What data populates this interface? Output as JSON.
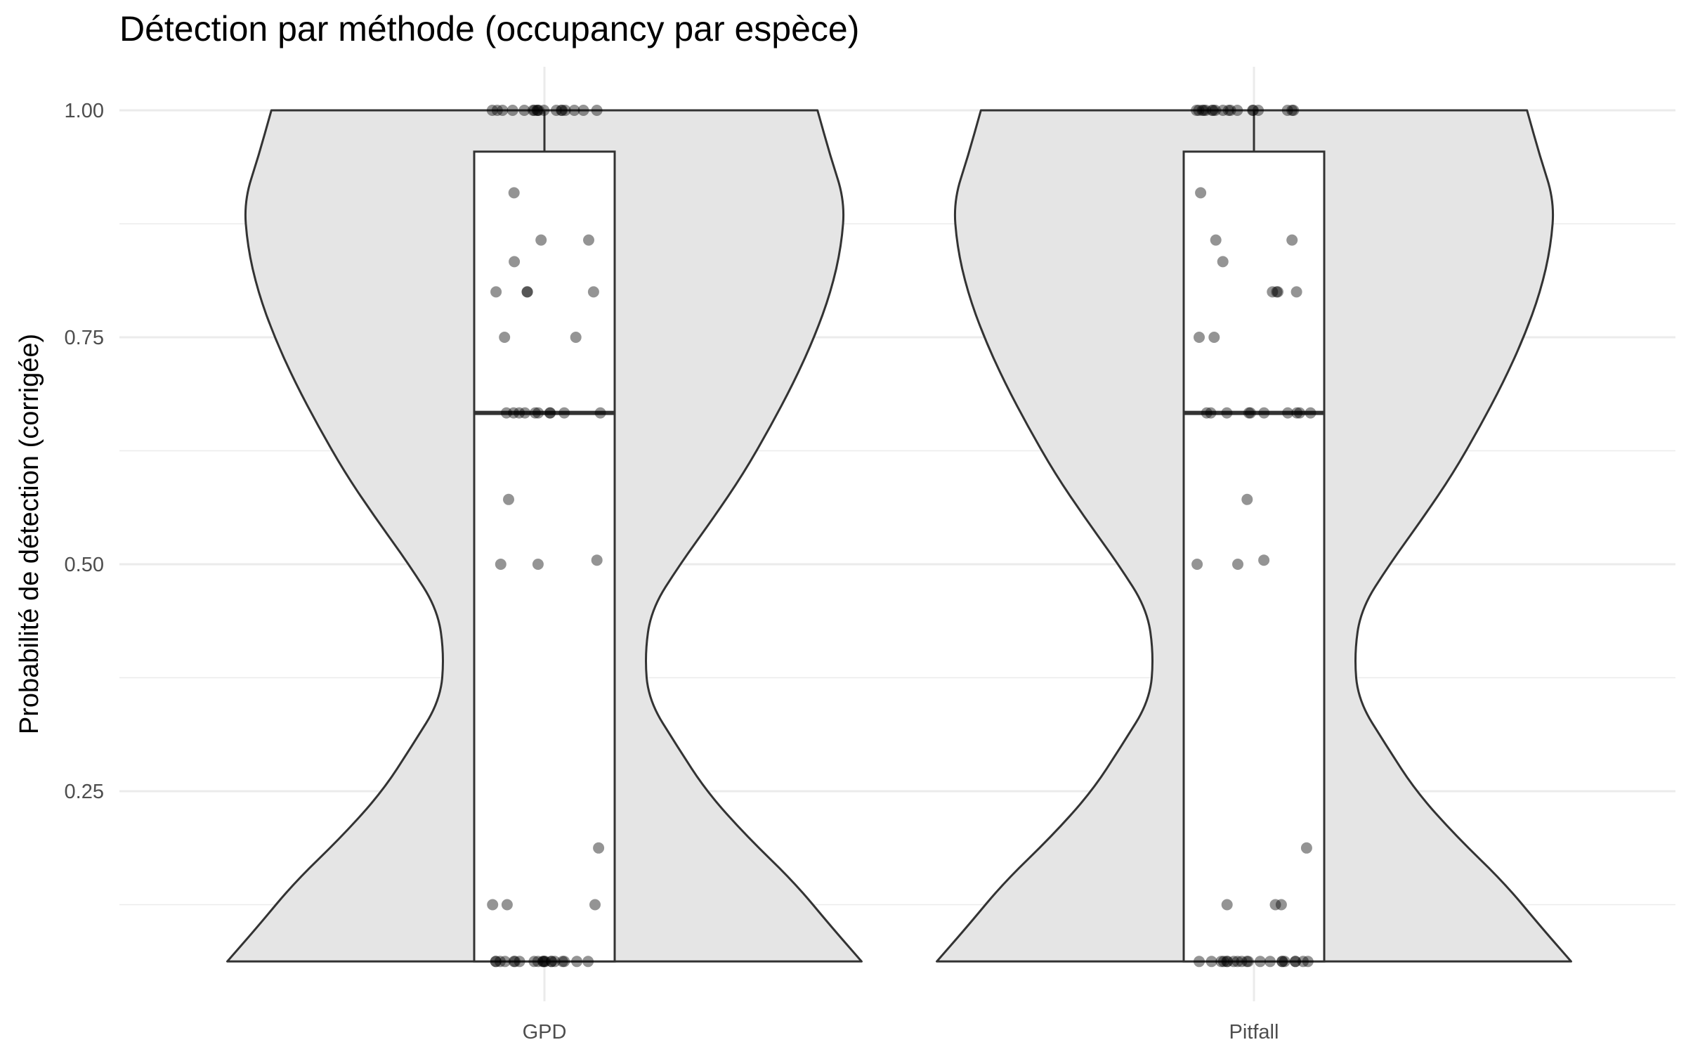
{
  "chart_data": {
    "type": "violin",
    "title": "Détection par méthode (occupancy par espèce)",
    "xlabel": "",
    "ylabel": "Probabilité de détection (corrigée)",
    "ylim": [
      0.043,
      1.0
    ],
    "yticks": [
      0.25,
      0.5,
      0.75,
      1.0
    ],
    "ytick_labels": [
      "0.25",
      "0.50",
      "0.75",
      "1.00"
    ],
    "categories": [
      "GPD",
      "Pitfall"
    ],
    "grid": true,
    "colors": {
      "violin_fill": "#e5e5e5",
      "outline": "#333333",
      "point": "#000000",
      "grid": "#ebebeb"
    },
    "groups": [
      {
        "name": "GPD",
        "box": {
          "min": 0.0625,
          "q1": 0.0625,
          "median": 0.6667,
          "q3": 0.9545,
          "max": 1.0
        },
        "violin_density": [
          [
            0.0625,
            0.999
          ],
          [
            0.1,
            0.905
          ],
          [
            0.15,
            0.786
          ],
          [
            0.2,
            0.638
          ],
          [
            0.25,
            0.51
          ],
          [
            0.3,
            0.417
          ],
          [
            0.35,
            0.328
          ],
          [
            0.4,
            0.316
          ],
          [
            0.45,
            0.336
          ],
          [
            0.5,
            0.427
          ],
          [
            0.55,
            0.53
          ],
          [
            0.6,
            0.627
          ],
          [
            0.65,
            0.709
          ],
          [
            0.7,
            0.785
          ],
          [
            0.75,
            0.85
          ],
          [
            0.8,
            0.902
          ],
          [
            0.85,
            0.935
          ],
          [
            0.9,
            0.946
          ],
          [
            0.95,
            0.9
          ],
          [
            1.0,
            0.86
          ]
        ],
        "points": [
          0.0625,
          0.0625,
          0.0625,
          0.0625,
          0.0625,
          0.0625,
          0.0625,
          0.0625,
          0.0625,
          0.0625,
          0.0625,
          0.0625,
          0.0625,
          0.0625,
          0.0625,
          0.0625,
          0.0625,
          0.0625,
          0.0625,
          0.0625,
          0.125,
          0.125,
          0.125,
          0.1875,
          0.5,
          0.5,
          0.5045,
          0.5714,
          0.6667,
          0.6667,
          0.6667,
          0.6667,
          0.6667,
          0.6667,
          0.6667,
          0.6667,
          0.6667,
          0.6667,
          0.75,
          0.75,
          0.8,
          0.8,
          0.8,
          0.8,
          0.8333,
          0.8571,
          0.8571,
          0.9091,
          1.0,
          1.0,
          1.0,
          1.0,
          1.0,
          1.0,
          1.0,
          1.0,
          1.0,
          1.0,
          1.0,
          1.0,
          1.0,
          1.0,
          1.0,
          1.0,
          1.0,
          1.0
        ]
      },
      {
        "name": "Pitfall",
        "box": {
          "min": 0.0625,
          "q1": 0.0625,
          "median": 0.6667,
          "q3": 0.9545,
          "max": 1.0
        },
        "violin_density": [
          [
            0.0625,
            0.999
          ],
          [
            0.1,
            0.905
          ],
          [
            0.15,
            0.786
          ],
          [
            0.2,
            0.638
          ],
          [
            0.25,
            0.51
          ],
          [
            0.3,
            0.417
          ],
          [
            0.35,
            0.328
          ],
          [
            0.4,
            0.316
          ],
          [
            0.45,
            0.336
          ],
          [
            0.5,
            0.427
          ],
          [
            0.55,
            0.53
          ],
          [
            0.6,
            0.627
          ],
          [
            0.65,
            0.709
          ],
          [
            0.7,
            0.785
          ],
          [
            0.75,
            0.85
          ],
          [
            0.8,
            0.902
          ],
          [
            0.85,
            0.935
          ],
          [
            0.9,
            0.946
          ],
          [
            0.95,
            0.9
          ],
          [
            1.0,
            0.86
          ]
        ],
        "points": [
          0.0625,
          0.0625,
          0.0625,
          0.0625,
          0.0625,
          0.0625,
          0.0625,
          0.0625,
          0.0625,
          0.0625,
          0.0625,
          0.0625,
          0.0625,
          0.0625,
          0.0625,
          0.0625,
          0.0625,
          0.0625,
          0.0625,
          0.0625,
          0.125,
          0.125,
          0.125,
          0.1875,
          0.5,
          0.5,
          0.5045,
          0.5714,
          0.6667,
          0.6667,
          0.6667,
          0.6667,
          0.6667,
          0.6667,
          0.6667,
          0.6667,
          0.6667,
          0.6667,
          0.75,
          0.75,
          0.8,
          0.8,
          0.8,
          0.8,
          0.8333,
          0.8571,
          0.8571,
          0.9091,
          1.0,
          1.0,
          1.0,
          1.0,
          1.0,
          1.0,
          1.0,
          1.0,
          1.0,
          1.0,
          1.0,
          1.0,
          1.0,
          1.0,
          1.0,
          1.0,
          1.0,
          1.0
        ]
      }
    ]
  }
}
